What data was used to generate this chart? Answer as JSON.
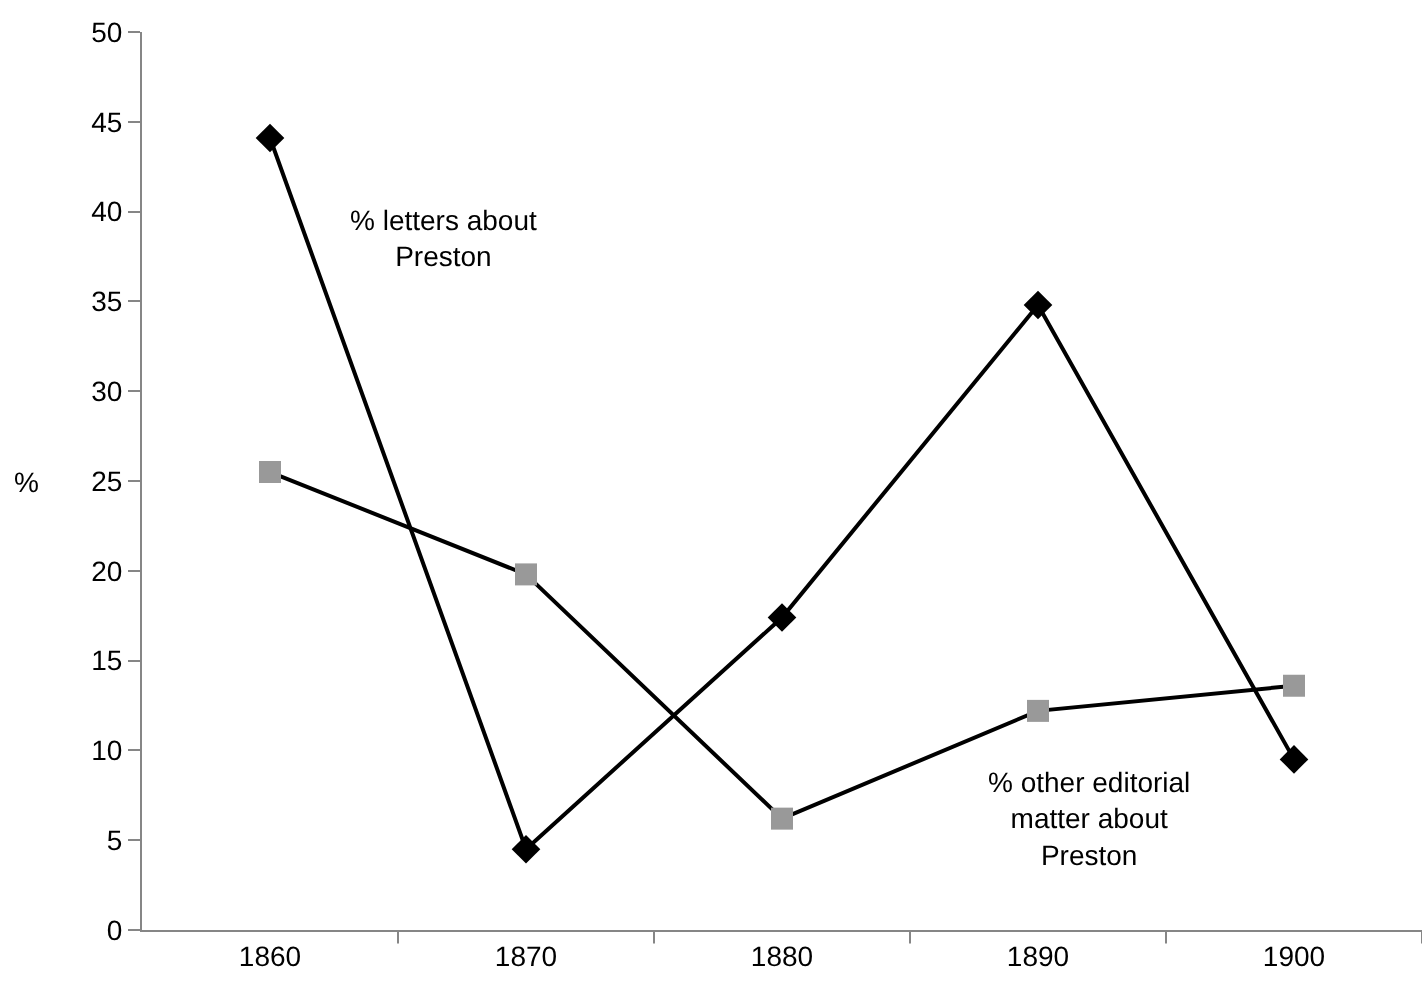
{
  "chart_data": {
    "type": "line",
    "ylabel": "%",
    "categories": [
      "1860",
      "1870",
      "1880",
      "1890",
      "1900"
    ],
    "ylim": [
      0,
      50
    ],
    "yticks": [
      0,
      5,
      10,
      15,
      20,
      25,
      30,
      35,
      40,
      45,
      50
    ],
    "grid": false,
    "legend": false,
    "series": [
      {
        "name": "% letters about Preston",
        "color": "#000000",
        "marker": "diamond",
        "values": [
          44.1,
          4.5,
          17.4,
          34.8,
          9.5
        ]
      },
      {
        "name": "% other editorial matter about Preston",
        "color": "#999999",
        "marker": "square",
        "values": [
          25.5,
          19.8,
          6.2,
          12.2,
          13.6
        ]
      }
    ]
  }
}
